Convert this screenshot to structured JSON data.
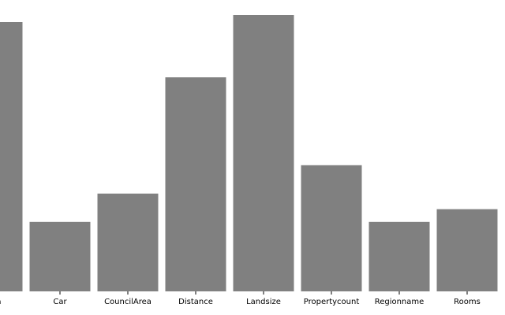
{
  "chart_data": {
    "type": "bar",
    "categories": [
      "Area",
      "Car",
      "CouncilArea",
      "Distance",
      "Landsize",
      "Propertycount",
      "Regionname",
      "Rooms"
    ],
    "values": [
      95,
      24.5,
      34.5,
      75.5,
      97.5,
      44.5,
      24.5,
      29
    ],
    "ylim": [
      0,
      100
    ],
    "grid": false,
    "legend": "none",
    "colors": {
      "bar": "#808080"
    },
    "title": "",
    "xlabel": "",
    "ylabel": ""
  }
}
